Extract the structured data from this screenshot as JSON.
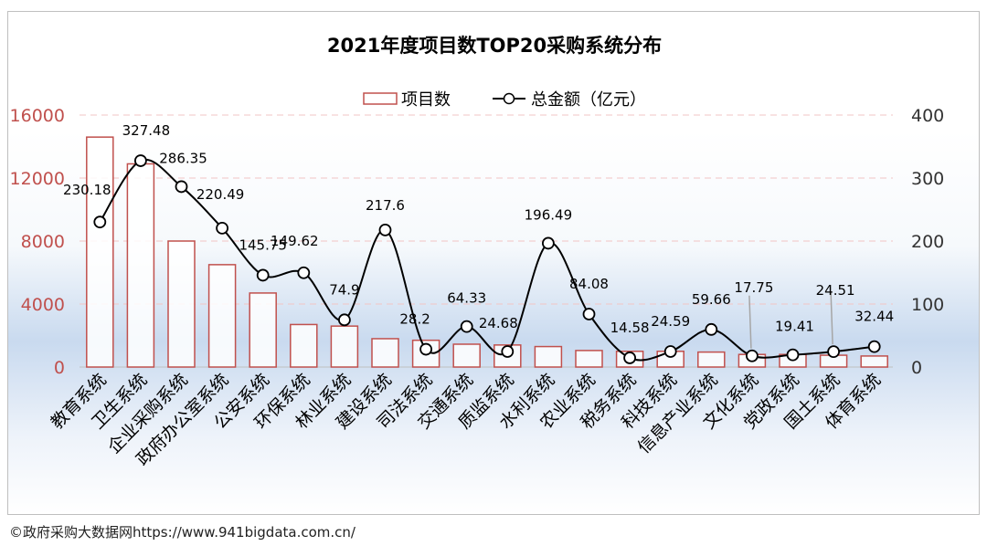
{
  "chart_data": {
    "type": "bar",
    "title": "2021年度项目数TOP20采购系统分布",
    "categories": [
      "教育系统",
      "卫生系统",
      "企业采购系统",
      "政府办公室系统",
      "公安系统",
      "环保系统",
      "林业系统",
      "建设系统",
      "司法系统",
      "交通系统",
      "质监系统",
      "水利系统",
      "农业系统",
      "税务系统",
      "科技系统",
      "信息产业系统",
      "文化系统",
      "党政系统",
      "国土系统",
      "体育系统"
    ],
    "series": [
      {
        "name": "项目数",
        "type": "bar",
        "axis": "left",
        "values": [
          14600,
          12900,
          8000,
          6500,
          4700,
          2700,
          2600,
          1800,
          1700,
          1450,
          1400,
          1300,
          1050,
          1000,
          1000,
          950,
          800,
          800,
          750,
          700
        ]
      },
      {
        "name": "总金额（亿元）",
        "type": "line",
        "axis": "right",
        "values": [
          230.18,
          327.48,
          286.35,
          220.49,
          145.75,
          149.62,
          74.9,
          217.6,
          28.2,
          64.33,
          24.68,
          196.49,
          84.08,
          14.58,
          24.59,
          59.66,
          17.75,
          19.41,
          24.51,
          32.44
        ]
      }
    ],
    "data_labels": [
      "230.18",
      "327.48",
      "286.35",
      "220.49",
      "145.75",
      "149.62",
      "74.9",
      "217.6",
      "28.2",
      "64.33",
      "24.68",
      "196.49",
      "84.08",
      "14.58",
      "24.59",
      "59.66",
      "17.75",
      "19.41",
      "24.51",
      "32.44"
    ],
    "left_axis": {
      "range": [
        0,
        16000
      ],
      "ticks": [
        "0",
        "4000",
        "8000",
        "12000",
        "16000"
      ],
      "color": "#c0504d"
    },
    "right_axis": {
      "range": [
        0,
        400
      ],
      "ticks": [
        "0",
        "100",
        "200",
        "300",
        "400"
      ]
    },
    "legend": {
      "position": "top",
      "bar_label": "项目数",
      "line_label": "总金额（亿元）"
    },
    "colors": {
      "bar_stroke": "#c0504d",
      "line": "#000000",
      "marker_fill": "#ffffff",
      "left_tick": "#c0504d",
      "gridline": "#f2c4c4"
    }
  },
  "footer": "©政府采购大数据网https://www.941bigdata.com.cn/"
}
